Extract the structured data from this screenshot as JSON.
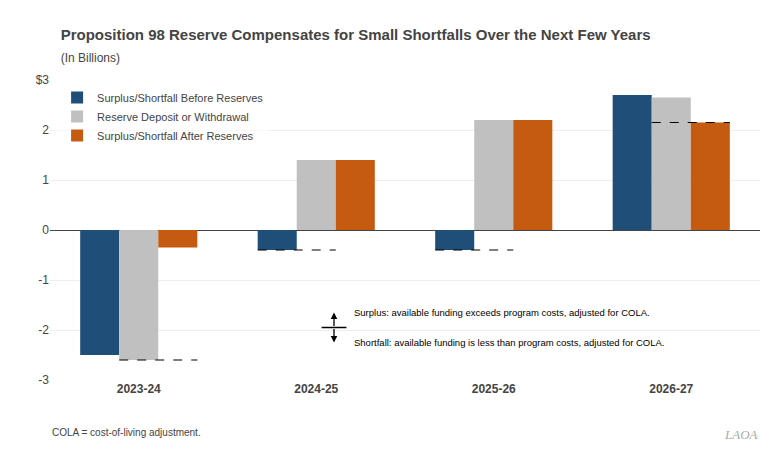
{
  "chart_data": {
    "type": "bar",
    "title": "Proposition 98 Reserve Compensates for Small Shortfalls Over the Next Few Years",
    "subtitle": "(In Billions)",
    "categories": [
      "2023-24",
      "2024-25",
      "2025-26",
      "2026-27"
    ],
    "series": [
      {
        "name": "Surplus/Shortfall Before Reserves",
        "color": "#1F4E79",
        "values": [
          -2.5,
          -0.4,
          -0.4,
          2.7
        ]
      },
      {
        "name": "Reserve Deposit or Withdrawal",
        "color": "#C0C0C0",
        "values": [
          -2.6,
          1.4,
          2.2,
          2.65
        ]
      },
      {
        "name": "Surplus/Shortfall After Reserves",
        "color": "#C55A11",
        "values": [
          -0.35,
          1.4,
          2.2,
          2.15
        ]
      }
    ],
    "dashed_lines": [
      -2.6,
      -0.4,
      -0.4,
      2.15
    ],
    "ylim": [
      -3,
      3
    ],
    "yticks": [
      -3,
      -2,
      -1,
      0,
      1,
      2,
      {
        "value": 3,
        "label": "$3"
      }
    ],
    "grid": true,
    "legend": "upper left",
    "annotations": [
      "Surplus: available funding exceeds program costs, adjusted for COLA.",
      "Shortfall: available funding is less than program costs, adjusted for COLA."
    ],
    "footnote": "COLA = cost-of-living adjustment.",
    "watermark": "LAOA"
  }
}
